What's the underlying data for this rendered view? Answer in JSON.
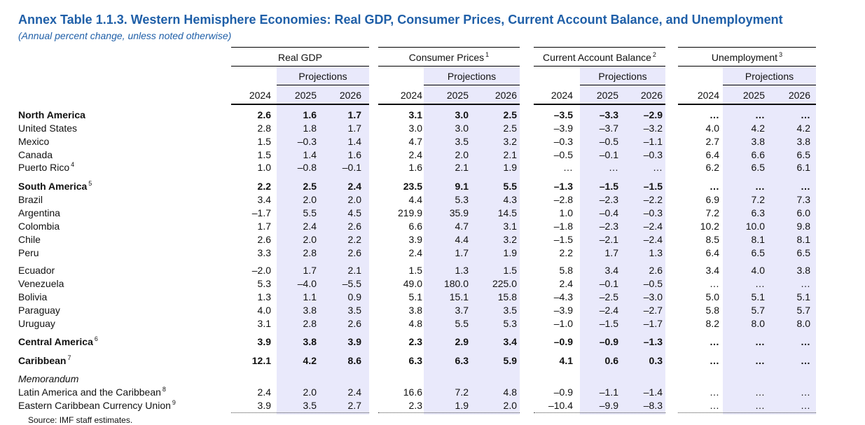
{
  "title": "Annex Table 1.1.3. Western Hemisphere Economies: Real GDP, Consumer Prices, Current Account Balance, and Unemployment",
  "subtitle": "(Annual percent change, unless noted otherwise)",
  "groups": [
    {
      "label": "Real GDP",
      "note": ""
    },
    {
      "label": "Consumer Prices",
      "note": "1"
    },
    {
      "label": "Current Account Balance",
      "note": "2"
    },
    {
      "label": "Unemployment",
      "note": "3"
    }
  ],
  "projections_label": "Projections",
  "years": [
    "2024",
    "2025",
    "2026"
  ],
  "rows": [
    {
      "label": "North America",
      "note": "",
      "style": "bold",
      "values": [
        "2.6",
        "1.6",
        "1.7",
        "3.1",
        "3.0",
        "2.5",
        "–3.5",
        "–3.3",
        "–2.9",
        "…",
        "…",
        "…"
      ]
    },
    {
      "label": "United States",
      "note": "",
      "style": "",
      "values": [
        "2.8",
        "1.8",
        "1.7",
        "3.0",
        "3.0",
        "2.5",
        "–3.9",
        "–3.7",
        "–3.2",
        "4.0",
        "4.2",
        "4.2"
      ]
    },
    {
      "label": "Mexico",
      "note": "",
      "style": "",
      "values": [
        "1.5",
        "–0.3",
        "1.4",
        "4.7",
        "3.5",
        "3.2",
        "–0.3",
        "–0.5",
        "–1.1",
        "2.7",
        "3.8",
        "3.8"
      ]
    },
    {
      "label": "Canada",
      "note": "",
      "style": "",
      "values": [
        "1.5",
        "1.4",
        "1.6",
        "2.4",
        "2.0",
        "2.1",
        "–0.5",
        "–0.1",
        "–0.3",
        "6.4",
        "6.6",
        "6.5"
      ]
    },
    {
      "label": "Puerto Rico",
      "note": "4",
      "style": "",
      "values": [
        "1.0",
        "–0.8",
        "–0.1",
        "1.6",
        "2.1",
        "1.9",
        "…",
        "…",
        "…",
        "6.2",
        "6.5",
        "6.1"
      ]
    },
    {
      "label": "South America",
      "note": "5",
      "style": "bold",
      "values": [
        "2.2",
        "2.5",
        "2.4",
        "23.5",
        "9.1",
        "5.5",
        "–1.3",
        "–1.5",
        "–1.5",
        "…",
        "…",
        "…"
      ]
    },
    {
      "label": "Brazil",
      "note": "",
      "style": "",
      "values": [
        "3.4",
        "2.0",
        "2.0",
        "4.4",
        "5.3",
        "4.3",
        "–2.8",
        "–2.3",
        "–2.2",
        "6.9",
        "7.2",
        "7.3"
      ]
    },
    {
      "label": "Argentina",
      "note": "",
      "style": "",
      "values": [
        "–1.7",
        "5.5",
        "4.5",
        "219.9",
        "35.9",
        "14.5",
        "1.0",
        "–0.4",
        "–0.3",
        "7.2",
        "6.3",
        "6.0"
      ]
    },
    {
      "label": "Colombia",
      "note": "",
      "style": "",
      "values": [
        "1.7",
        "2.4",
        "2.6",
        "6.6",
        "4.7",
        "3.1",
        "–1.8",
        "–2.3",
        "–2.4",
        "10.2",
        "10.0",
        "9.8"
      ]
    },
    {
      "label": "Chile",
      "note": "",
      "style": "",
      "values": [
        "2.6",
        "2.0",
        "2.2",
        "3.9",
        "4.4",
        "3.2",
        "–1.5",
        "–2.1",
        "–2.4",
        "8.5",
        "8.1",
        "8.1"
      ]
    },
    {
      "label": "Peru",
      "note": "",
      "style": "",
      "values": [
        "3.3",
        "2.8",
        "2.6",
        "2.4",
        "1.7",
        "1.9",
        "2.2",
        "1.7",
        "1.3",
        "6.4",
        "6.5",
        "6.5"
      ]
    },
    {
      "label": "Ecuador",
      "note": "",
      "style": "",
      "values": [
        "–2.0",
        "1.7",
        "2.1",
        "1.5",
        "1.3",
        "1.5",
        "5.8",
        "3.4",
        "2.6",
        "3.4",
        "4.0",
        "3.8"
      ]
    },
    {
      "label": "Venezuela",
      "note": "",
      "style": "",
      "values": [
        "5.3",
        "–4.0",
        "–5.5",
        "49.0",
        "180.0",
        "225.0",
        "2.4",
        "–0.1",
        "–0.5",
        "…",
        "…",
        "…"
      ]
    },
    {
      "label": "Bolivia",
      "note": "",
      "style": "",
      "values": [
        "1.3",
        "1.1",
        "0.9",
        "5.1",
        "15.1",
        "15.8",
        "–4.3",
        "–2.5",
        "–3.0",
        "5.0",
        "5.1",
        "5.1"
      ]
    },
    {
      "label": "Paraguay",
      "note": "",
      "style": "",
      "values": [
        "4.0",
        "3.8",
        "3.5",
        "3.8",
        "3.7",
        "3.5",
        "–3.9",
        "–2.4",
        "–2.7",
        "5.8",
        "5.7",
        "5.7"
      ]
    },
    {
      "label": "Uruguay",
      "note": "",
      "style": "",
      "values": [
        "3.1",
        "2.8",
        "2.6",
        "4.8",
        "5.5",
        "5.3",
        "–1.0",
        "–1.5",
        "–1.7",
        "8.2",
        "8.0",
        "8.0"
      ]
    },
    {
      "label": "Central America",
      "note": "6",
      "style": "bold",
      "values": [
        "3.9",
        "3.8",
        "3.9",
        "2.3",
        "2.9",
        "3.4",
        "–0.9",
        "–0.9",
        "–1.3",
        "…",
        "…",
        "…"
      ]
    },
    {
      "label": "Caribbean",
      "note": "7",
      "style": "bold",
      "values": [
        "12.1",
        "4.2",
        "8.6",
        "6.3",
        "6.3",
        "5.9",
        "4.1",
        "0.6",
        "0.3",
        "…",
        "…",
        "…"
      ]
    },
    {
      "label": "Memorandum",
      "note": "",
      "style": "italic",
      "values": []
    },
    {
      "label": "Latin America and the Caribbean",
      "note": "8",
      "style": "",
      "values": [
        "2.4",
        "2.0",
        "2.4",
        "16.6",
        "7.2",
        "4.8",
        "–0.9",
        "–1.1",
        "–1.4",
        "…",
        "…",
        "…"
      ]
    },
    {
      "label": "Eastern Caribbean Currency Union",
      "note": "9",
      "style": "",
      "values": [
        "3.9",
        "3.5",
        "2.7",
        "2.3",
        "1.9",
        "2.0",
        "–10.4",
        "–9.9",
        "–8.3",
        "…",
        "…",
        "…"
      ]
    }
  ],
  "source": "Source: IMF staff estimates."
}
